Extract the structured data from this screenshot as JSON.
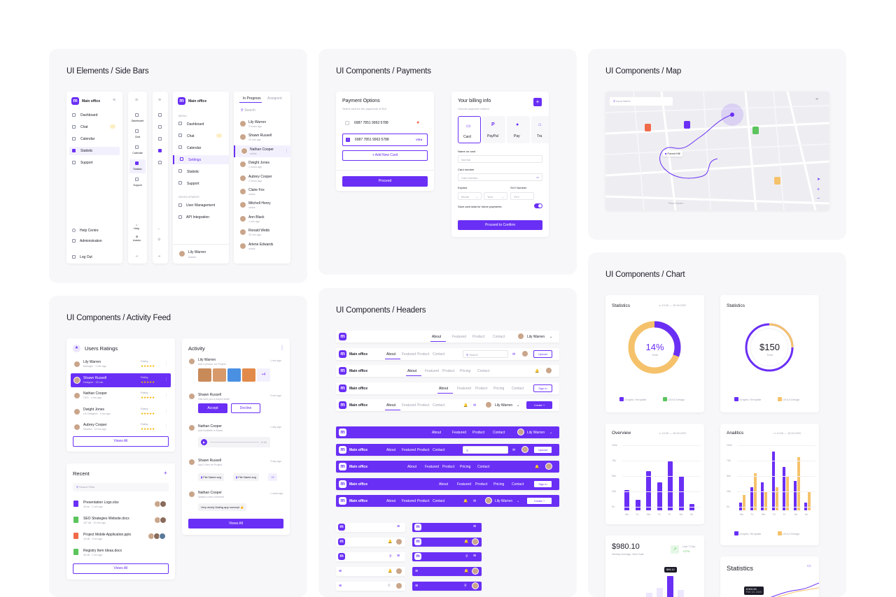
{
  "sections": {
    "sidebars": "UI Elements / Side Bars",
    "payments": "UI Components / Payments",
    "map": "UI Components / Map",
    "activity": "UI Components / Activity Feed",
    "headers": "UI Components / Headers",
    "chart": "UI Components / Chart"
  },
  "sidebar": {
    "brand": "Main office",
    "items": [
      "Dashboard",
      "Chat",
      "Calendar",
      "Statistic",
      "Support"
    ],
    "items2": [
      "Dashboard",
      "Chat",
      "Calendar",
      "Settings",
      "Statistic",
      "Support"
    ],
    "mini_items": [
      "Dashboard",
      "Chat",
      "Calendar",
      "Statistic",
      "Support"
    ],
    "footer": [
      "Help Centre",
      "Administration",
      "Log Out"
    ],
    "mini_footer": [
      "Help",
      "Admin"
    ],
    "menu_label": "MENU",
    "dev_label": "DEVELOPMENT",
    "dev_items": [
      "User Management",
      "API Integration"
    ],
    "user": {
      "name": "Lily Warren",
      "role": "Admin"
    },
    "contacts_tabs": [
      "In Progress",
      "Assigned"
    ],
    "search": "Search",
    "contacts": [
      {
        "name": "Lily Warren",
        "sub": "3 hours ago"
      },
      {
        "name": "Shawn Russell",
        "sub": "20 min ago"
      },
      {
        "name": "Nathan Cooper",
        "sub": "online"
      },
      {
        "name": "Dwight Jones",
        "sub": "1 hours ago"
      },
      {
        "name": "Aubrey Cooper",
        "sub": "2 hours ago"
      },
      {
        "name": "Claire Fox",
        "sub": "online"
      },
      {
        "name": "Mitchell Henry",
        "sub": "online"
      },
      {
        "name": "Ann Black",
        "sub": "1 min ago"
      },
      {
        "name": "Ronald Webb",
        "sub": "20 min ago"
      },
      {
        "name": "Arlene Edwards",
        "sub": "online"
      }
    ]
  },
  "payments": {
    "options_title": "Payment Options",
    "options_sub": "Select card for the payments of $19",
    "cards": [
      "6987  7851  9963  5788",
      "6987  7851  9963  5788"
    ],
    "visa": "VISA",
    "add_card": "+  Add New Card",
    "proceed": "Proceed",
    "billing_title": "Your billing info",
    "billing_sub": "Choose payment method",
    "methods": [
      "Card",
      "PayPal",
      "Pay",
      "Tra"
    ],
    "name_label": "Name on card",
    "name_ph": "Normal",
    "number_label": "Card number",
    "number_ph": "Card number",
    "expires_label": "Expires",
    "svv_label": "SVV Number",
    "month": "Month",
    "year": "Year",
    "svv": "SVV",
    "save_label": "Save card data for future payments",
    "confirm": "Proceed to Confirm",
    "add_icon": "+"
  },
  "map": {
    "input_ph": "Input Name",
    "place": "Forest Hill",
    "park": "Place Garden"
  },
  "activity": {
    "ratings_title": "Users Ratings",
    "rating_label": "Rating",
    "users": [
      {
        "name": "Lily Warren",
        "sub": "Manager · 2 min ago"
      },
      {
        "name": "Shawn Russell",
        "sub": "Designer · 20 min"
      },
      {
        "name": "Nathan Cooper",
        "sub": "CEO · 4 hrs ago"
      },
      {
        "name": "Dwight Jones",
        "sub": "UX Designer · 3 hrs ago"
      },
      {
        "name": "Aubrey Cooper",
        "sub": "Student · 10 hrs ago"
      }
    ],
    "views_all": "Views All",
    "feed_title": "Activity",
    "feed": [
      {
        "name": "Lily Warren",
        "sub": "Add 4 photos, for Project",
        "time": "1 min ago"
      },
      {
        "name": "Shawn Russell",
        "sub": "Has sent you a project invite",
        "time": "3 min ago"
      },
      {
        "name": "Nathan Cooper",
        "sub": "Add Audiofile in Music",
        "time": "1 day ago"
      },
      {
        "name": "Shawn Russell",
        "sub": "Add 2 files for Project",
        "time": "3 day ago"
      },
      {
        "name": "Nathan Cooper",
        "sub": "Added a new comment",
        "time": "1 week ago"
      }
    ],
    "plus4": "+4",
    "accept": "Accept",
    "decline": "Decline",
    "audio_time": "0:18",
    "file1": "File Name.svg",
    "file2": "File Name.svg",
    "plus2": "+2",
    "comment": "Very nicely Dating app concept 👍",
    "recent_title": "Recent",
    "search_files": "Search Files",
    "files": [
      {
        "name": "Presentation Logo.xlsx",
        "sub": "28 kb · 1 min ago",
        "color": "#6a2ff5"
      },
      {
        "name": "SEO Strategies Website.docx",
        "sub": "187 kB · 10 min ago",
        "color": "#5cc45c"
      },
      {
        "name": "Project Mobile Application.pptx",
        "sub": "18 kB · 3 hrs ago",
        "color": "#f06a4a"
      },
      {
        "name": "Registry Item Ideas.docx",
        "sub": "28 kB · 2 hrs ago",
        "color": "#5cc45c"
      }
    ]
  },
  "headers": {
    "brand": "Main office",
    "nav4": [
      "About",
      "Featured",
      "Product",
      "Contact"
    ],
    "nav5": [
      "About",
      "Featured",
      "Product",
      "Pricing",
      "Contact"
    ],
    "user": "Lily Warren",
    "search": "Search",
    "upload": "Upload",
    "signin": "Sign in",
    "create": "Create  +"
  },
  "charts": {
    "stats_title": "Statistics",
    "date_range": "10.06  —  15.06.2020",
    "donut1": {
      "value": "14%",
      "label": "Total",
      "percent": 14
    },
    "donut2": {
      "value": "$150",
      "label": "Total"
    },
    "legend": [
      "Graphic Template",
      "UX/UI Design"
    ],
    "overview_title": "Overview",
    "analytics_title": "Analitics",
    "yticks": [
      "100k",
      "75k",
      "50k",
      "25k",
      "0k"
    ],
    "days": [
      "Mo",
      "Tu",
      "We",
      "Th",
      "Fr",
      "Sa",
      "Su"
    ],
    "earnings": "$980.10",
    "earnings_sub": "Weekly Average, New Sale",
    "last_label": "Last 7 Day",
    "last_change": "+27%",
    "tooltip": "$98.10",
    "stats2_title": "Statistics",
    "tooltip2": "$ 500.50",
    "tooltip2_date": "Feb 10, 2020",
    "colors": {
      "accent": "#6a2ff5",
      "yellow": "#f5c26b",
      "green": "#5cc45c"
    }
  },
  "chart_data": [
    {
      "type": "pie",
      "title": "Statistics",
      "values": [
        14,
        86
      ],
      "labels": [
        "Graphic Template",
        "UX/UI Design"
      ]
    },
    {
      "type": "bar",
      "title": "Overview",
      "categories": [
        "Mo",
        "Tu",
        "We",
        "Th",
        "Fr",
        "Sa",
        "Su"
      ],
      "values": [
        33,
        17,
        64,
        46,
        80,
        56,
        10
      ],
      "ylim": [
        0,
        100
      ]
    },
    {
      "type": "bar",
      "title": "Analitics",
      "categories": [
        "Mo",
        "Tu",
        "We",
        "Th",
        "Fr",
        "Sa",
        "Su"
      ],
      "series": [
        {
          "name": "Graphic Template",
          "values": [
            13,
            37,
            45,
            96,
            70,
            48,
            12
          ]
        },
        {
          "name": "UX/UI Design",
          "values": [
            25,
            60,
            30,
            38,
            55,
            86,
            30
          ]
        }
      ],
      "ylim": [
        0,
        100
      ]
    }
  ]
}
